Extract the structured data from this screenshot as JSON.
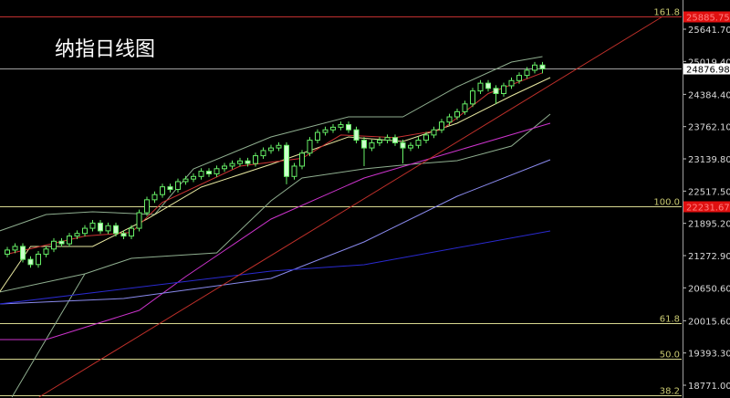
{
  "title": "纳指日线图",
  "chart_data": {
    "type": "candlestick",
    "title": "纳指日线图",
    "yaxis": {
      "ticks": [
        "25641.70",
        "25019.40",
        "24384.40",
        "23762.10",
        "23139.80",
        "22517.50",
        "21895.20",
        "21272.90",
        "20650.60",
        "20015.60",
        "19393.30",
        "18771.00"
      ],
      "range": [
        18520,
        26120
      ]
    },
    "current_price": {
      "value": 24876.98,
      "label": "24876.98"
    },
    "fib_levels": [
      {
        "level": "161.8",
        "price": 25885.75,
        "price_label": "25885.75",
        "color": "#c03030"
      },
      {
        "level": "100.0",
        "price": 22231.67,
        "price_label": "22231.67",
        "color": "#d8d890"
      },
      {
        "level": "61.8",
        "price": 19972,
        "color": "#d8d890"
      },
      {
        "level": "50.0",
        "price": 19275,
        "color": "#d8d890"
      },
      {
        "level": "38.2",
        "price": 18577,
        "color": "#d8d890"
      }
    ],
    "candles": {
      "open": [
        21300,
        21380,
        21450,
        21200,
        21100,
        21300,
        21400,
        21550,
        21500,
        21650,
        21700,
        21800,
        21900,
        21750,
        21850,
        21700,
        21650,
        21800,
        22100,
        22350,
        22450,
        22600,
        22550,
        22700,
        22750,
        22800,
        22900,
        22850,
        22950,
        23000,
        23050,
        23100,
        23050,
        23200,
        23300,
        23350,
        23400,
        22800,
        23000,
        23250,
        23500,
        23650,
        23700,
        23750,
        23800,
        23700,
        23500,
        23350,
        23450,
        23500,
        23550,
        23450,
        23350,
        23400,
        23500,
        23600,
        23700,
        23850,
        23950,
        24050,
        24200,
        24450,
        24600,
        24500,
        24400,
        24550,
        24650,
        24750,
        24850,
        24950
      ],
      "high": [
        21440,
        21510,
        21510,
        21260,
        21360,
        21460,
        21610,
        21610,
        21710,
        21760,
        21860,
        21960,
        21960,
        21910,
        21910,
        21760,
        21860,
        22160,
        22410,
        22510,
        22660,
        22660,
        22760,
        22810,
        22860,
        22960,
        22960,
        23010,
        23060,
        23110,
        23160,
        23160,
        23260,
        23360,
        23410,
        23460,
        23460,
        23060,
        23310,
        23560,
        23710,
        23760,
        23810,
        23860,
        23860,
        23760,
        23560,
        23510,
        23560,
        23610,
        23610,
        23510,
        23460,
        23560,
        23660,
        23760,
        23910,
        24010,
        24110,
        24260,
        24510,
        24660,
        24660,
        24560,
        24610,
        24710,
        24810,
        24910,
        25010,
        25010
      ],
      "low": [
        21240,
        21320,
        21140,
        21040,
        21040,
        21240,
        21340,
        21440,
        21440,
        21590,
        21640,
        21740,
        21690,
        21690,
        21640,
        21590,
        21590,
        21740,
        22040,
        22290,
        22390,
        22490,
        22490,
        22640,
        22690,
        22740,
        22790,
        22790,
        22890,
        22940,
        22990,
        22990,
        22990,
        23140,
        23240,
        23290,
        22650,
        22740,
        22940,
        23190,
        23440,
        23590,
        23640,
        23690,
        23640,
        23440,
        23000,
        23290,
        23390,
        23440,
        23390,
        23050,
        23290,
        23340,
        23440,
        23540,
        23640,
        23790,
        23890,
        23990,
        24140,
        24390,
        24440,
        24200,
        24340,
        24490,
        24590,
        24690,
        24790,
        24790
      ],
      "close": [
        21380,
        21450,
        21200,
        21100,
        21300,
        21400,
        21550,
        21500,
        21650,
        21700,
        21800,
        21900,
        21750,
        21850,
        21700,
        21650,
        21800,
        22100,
        22350,
        22450,
        22600,
        22550,
        22700,
        22750,
        22800,
        22900,
        22850,
        22950,
        23000,
        23050,
        23100,
        23050,
        23200,
        23300,
        23350,
        23400,
        22800,
        23000,
        23250,
        23500,
        23650,
        23700,
        23750,
        23800,
        23700,
        23500,
        23350,
        23450,
        23500,
        23550,
        23450,
        23350,
        23400,
        23500,
        23600,
        23700,
        23850,
        23950,
        24050,
        24200,
        24450,
        24600,
        24500,
        24400,
        24550,
        24650,
        24750,
        24850,
        24950,
        24877
      ],
      "up_color": "#66ee66",
      "down_color": "#ccffcc"
    },
    "overlays": [
      {
        "color": "#8fae8f",
        "points": [
          [
            -1,
            21748
          ],
          [
            5,
            22065
          ],
          [
            11,
            22118
          ],
          [
            19,
            22065
          ],
          [
            24,
            22946
          ],
          [
            34,
            23563
          ],
          [
            44,
            23950
          ],
          [
            51,
            23950
          ],
          [
            58,
            24532
          ],
          [
            65,
            25007
          ],
          [
            69,
            25113
          ]
        ]
      },
      {
        "color": "#8fae8f",
        "points": [
          [
            -1,
            20568
          ],
          [
            10,
            20920
          ],
          [
            16,
            21220
          ],
          [
            27,
            21325
          ],
          [
            34,
            22330
          ],
          [
            38,
            22770
          ],
          [
            46,
            22946
          ],
          [
            52,
            23034
          ],
          [
            58,
            23105
          ],
          [
            65,
            23387
          ],
          [
            70,
            24003
          ]
        ]
      },
      {
        "color": "#8fae8f",
        "points": [
          [
            0.6,
            18542
          ],
          [
            10,
            20920
          ]
        ]
      },
      {
        "color": "#e8e8a0",
        "points": [
          [
            -1,
            20568
          ],
          [
            3,
            21449
          ],
          [
            11,
            21449
          ],
          [
            18,
            21977
          ],
          [
            25,
            22594
          ],
          [
            34,
            23034
          ],
          [
            44,
            23563
          ],
          [
            51,
            23475
          ],
          [
            58,
            23827
          ],
          [
            65,
            24356
          ],
          [
            70,
            24708
          ]
        ]
      },
      {
        "color": "#cc3333",
        "points": [
          [
            0,
            21300
          ],
          [
            10,
            21650
          ],
          [
            16,
            21720
          ],
          [
            20,
            22300
          ],
          [
            30,
            23000
          ],
          [
            38,
            23150
          ],
          [
            43,
            23600
          ],
          [
            50,
            23550
          ],
          [
            56,
            23700
          ],
          [
            62,
            24400
          ],
          [
            69,
            24800
          ]
        ]
      },
      {
        "color": "#cc33cc",
        "points": [
          [
            -1,
            19652
          ],
          [
            5,
            19652
          ],
          [
            17,
            20215
          ],
          [
            23,
            20867
          ],
          [
            34,
            21977
          ],
          [
            46,
            22770
          ],
          [
            58,
            23299
          ],
          [
            70,
            23827
          ]
        ]
      },
      {
        "color": "#8a8aee",
        "points": [
          [
            -1,
            20339
          ],
          [
            15,
            20445
          ],
          [
            34,
            20832
          ],
          [
            46,
            21537
          ],
          [
            58,
            22418
          ],
          [
            70,
            23122
          ]
        ]
      },
      {
        "color": "#2a2ad0",
        "points": [
          [
            -1,
            20339
          ],
          [
            34,
            20973
          ],
          [
            46,
            21096
          ],
          [
            70,
            21748
          ]
        ]
      },
      {
        "color": "#c0302a",
        "points": [
          [
            4.1,
            18542
          ],
          [
            84.5,
            25888
          ]
        ]
      }
    ]
  }
}
